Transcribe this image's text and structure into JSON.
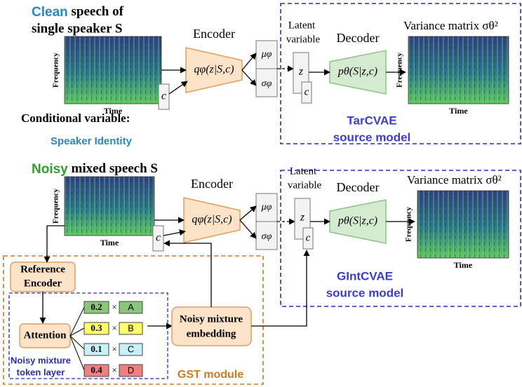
{
  "panels": [
    {
      "title_highlight": "Clean",
      "title_rest": " speech of",
      "title_line2": "single speaker S",
      "y_label": "Frequency",
      "x_label": "Time",
      "encoder": "Encoder",
      "posterior": "qφ(z|S,c)",
      "encoder_condition": "c",
      "mu": "μφ",
      "sigma": "σφ",
      "latent_label": [
        "Latent",
        "variable"
      ],
      "latent": "z",
      "decoder_condition": "c",
      "decoder": "Decoder",
      "likelihood": "pθ(S|z,c)",
      "output_title": "Variance matrix σθ²",
      "output_y_label": "Frequency",
      "output_x_label": "Time",
      "model_name": "TarCVAE",
      "model_kind": "source model"
    },
    {
      "title_highlight": "Noisy",
      "title_rest": " mixed speech S",
      "y_label": "Frequency",
      "x_label": "Time",
      "encoder": "Encoder",
      "posterior": "qφ(z|S,c)",
      "encoder_condition": "c",
      "mu": "μφ",
      "sigma": "σφ",
      "latent_label": [
        "Latent",
        "variable"
      ],
      "latent": "z",
      "decoder_condition": "c",
      "decoder": "Decoder",
      "likelihood": "pθ(S|z,c)",
      "output_title": "Variance matrix σθ²",
      "output_y_label": "Frequency",
      "output_x_label": "Time",
      "model_name": "GIntCVAE",
      "model_kind": "source model"
    }
  ],
  "conditional": {
    "line1": "Conditional variable:",
    "line2": "Speaker Identity"
  },
  "gst": {
    "reference_encoder": [
      "Reference",
      "Encoder"
    ],
    "attention": "Attention",
    "tokens": [
      {
        "weight": 0.2,
        "times": "×",
        "name": "A"
      },
      {
        "weight": 0.3,
        "times": "×",
        "name": "B"
      },
      {
        "weight": 0.1,
        "times": "×",
        "name": "C"
      },
      {
        "weight": 0.4,
        "times": "×",
        "name": "D"
      }
    ],
    "token_layer_label": [
      "Noisy mixture",
      "token layer"
    ],
    "embedding": [
      "Noisy mixture",
      "embedding"
    ],
    "module_label": "GST module"
  }
}
